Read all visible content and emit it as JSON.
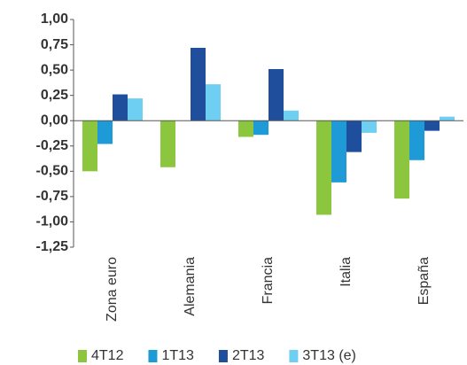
{
  "chart_data": {
    "type": "bar",
    "categories": [
      "Zona euro",
      "Alemania",
      "Francia",
      "Italia",
      "España"
    ],
    "series": [
      {
        "name": "4T12",
        "color": "#8cc63f",
        "values": [
          -0.5,
          -0.46,
          -0.16,
          -0.93,
          -0.77
        ]
      },
      {
        "name": "1T13",
        "color": "#1e9ad6",
        "values": [
          -0.23,
          0,
          -0.14,
          -0.61,
          -0.39
        ]
      },
      {
        "name": "2T13",
        "color": "#1f4e9c",
        "values": [
          0.26,
          0.72,
          0.51,
          -0.31,
          -0.1
        ]
      },
      {
        "name": "3T13 (e)",
        "color": "#6fcff2",
        "values": [
          0.22,
          0.36,
          0.1,
          -0.12,
          0.04
        ]
      }
    ],
    "ylim": [
      -1.25,
      1.0
    ],
    "yticks": [
      {
        "value": -1.25,
        "label": "-1,25"
      },
      {
        "value": -1.0,
        "label": "-1,00"
      },
      {
        "value": -0.75,
        "label": "-0,75"
      },
      {
        "value": -0.5,
        "label": "-0,50"
      },
      {
        "value": -0.25,
        "label": "-0,25"
      },
      {
        "value": 0,
        "label": "0,00"
      },
      {
        "value": 0.25,
        "label": "0,25"
      },
      {
        "value": 0.5,
        "label": "0,50"
      },
      {
        "value": 0.75,
        "label": "0,75"
      },
      {
        "value": 1.0,
        "label": "1,00"
      }
    ],
    "grid": false,
    "legend": "bottom"
  }
}
